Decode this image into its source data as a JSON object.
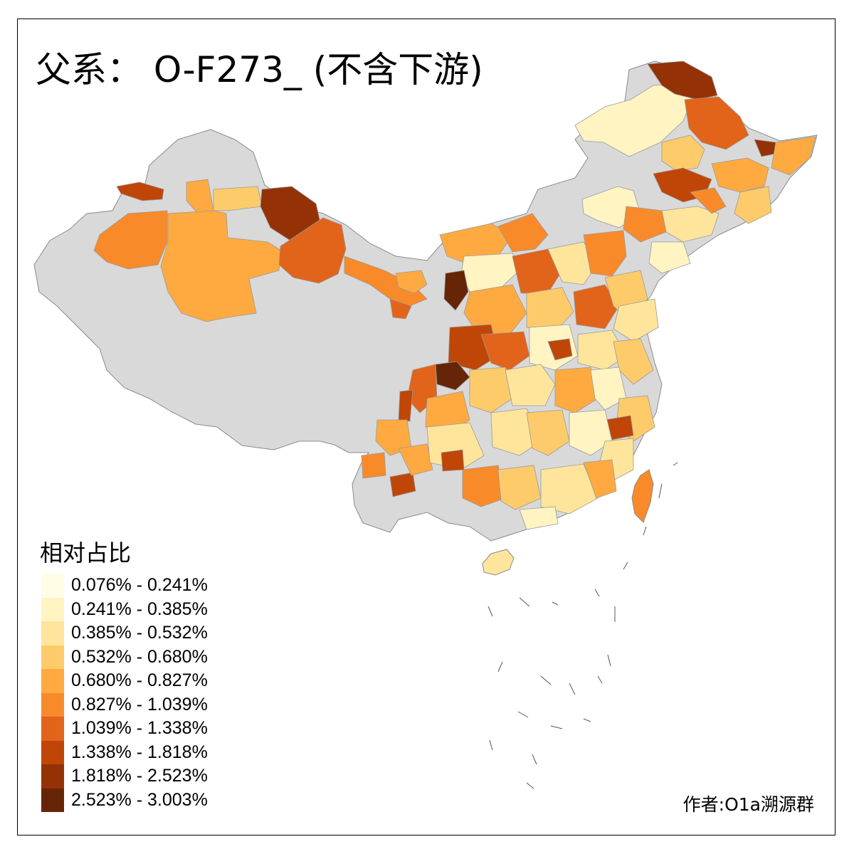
{
  "title": "父系： O-F273_ (不含下游)",
  "legend": {
    "title": "相对占比",
    "items": [
      {
        "label": "0.076% - 0.241%",
        "color": "#fffde6"
      },
      {
        "label": "0.241% - 0.385%",
        "color": "#fff4c2"
      },
      {
        "label": "0.385% - 0.532%",
        "color": "#fee59b"
      },
      {
        "label": "0.532% - 0.680%",
        "color": "#fecb6a"
      },
      {
        "label": "0.680% - 0.827%",
        "color": "#feaa40"
      },
      {
        "label": "0.827% - 1.039%",
        "color": "#f98a2a"
      },
      {
        "label": "1.039% - 1.338%",
        "color": "#e2631a"
      },
      {
        "label": "1.338% - 1.818%",
        "color": "#bf4607"
      },
      {
        "label": "1.818% - 2.523%",
        "color": "#943205"
      },
      {
        "label": "2.523% - 3.003%",
        "color": "#662506"
      }
    ]
  },
  "no_data_color": "#d9d9d9",
  "credit": "作者:O1a溯源群"
}
